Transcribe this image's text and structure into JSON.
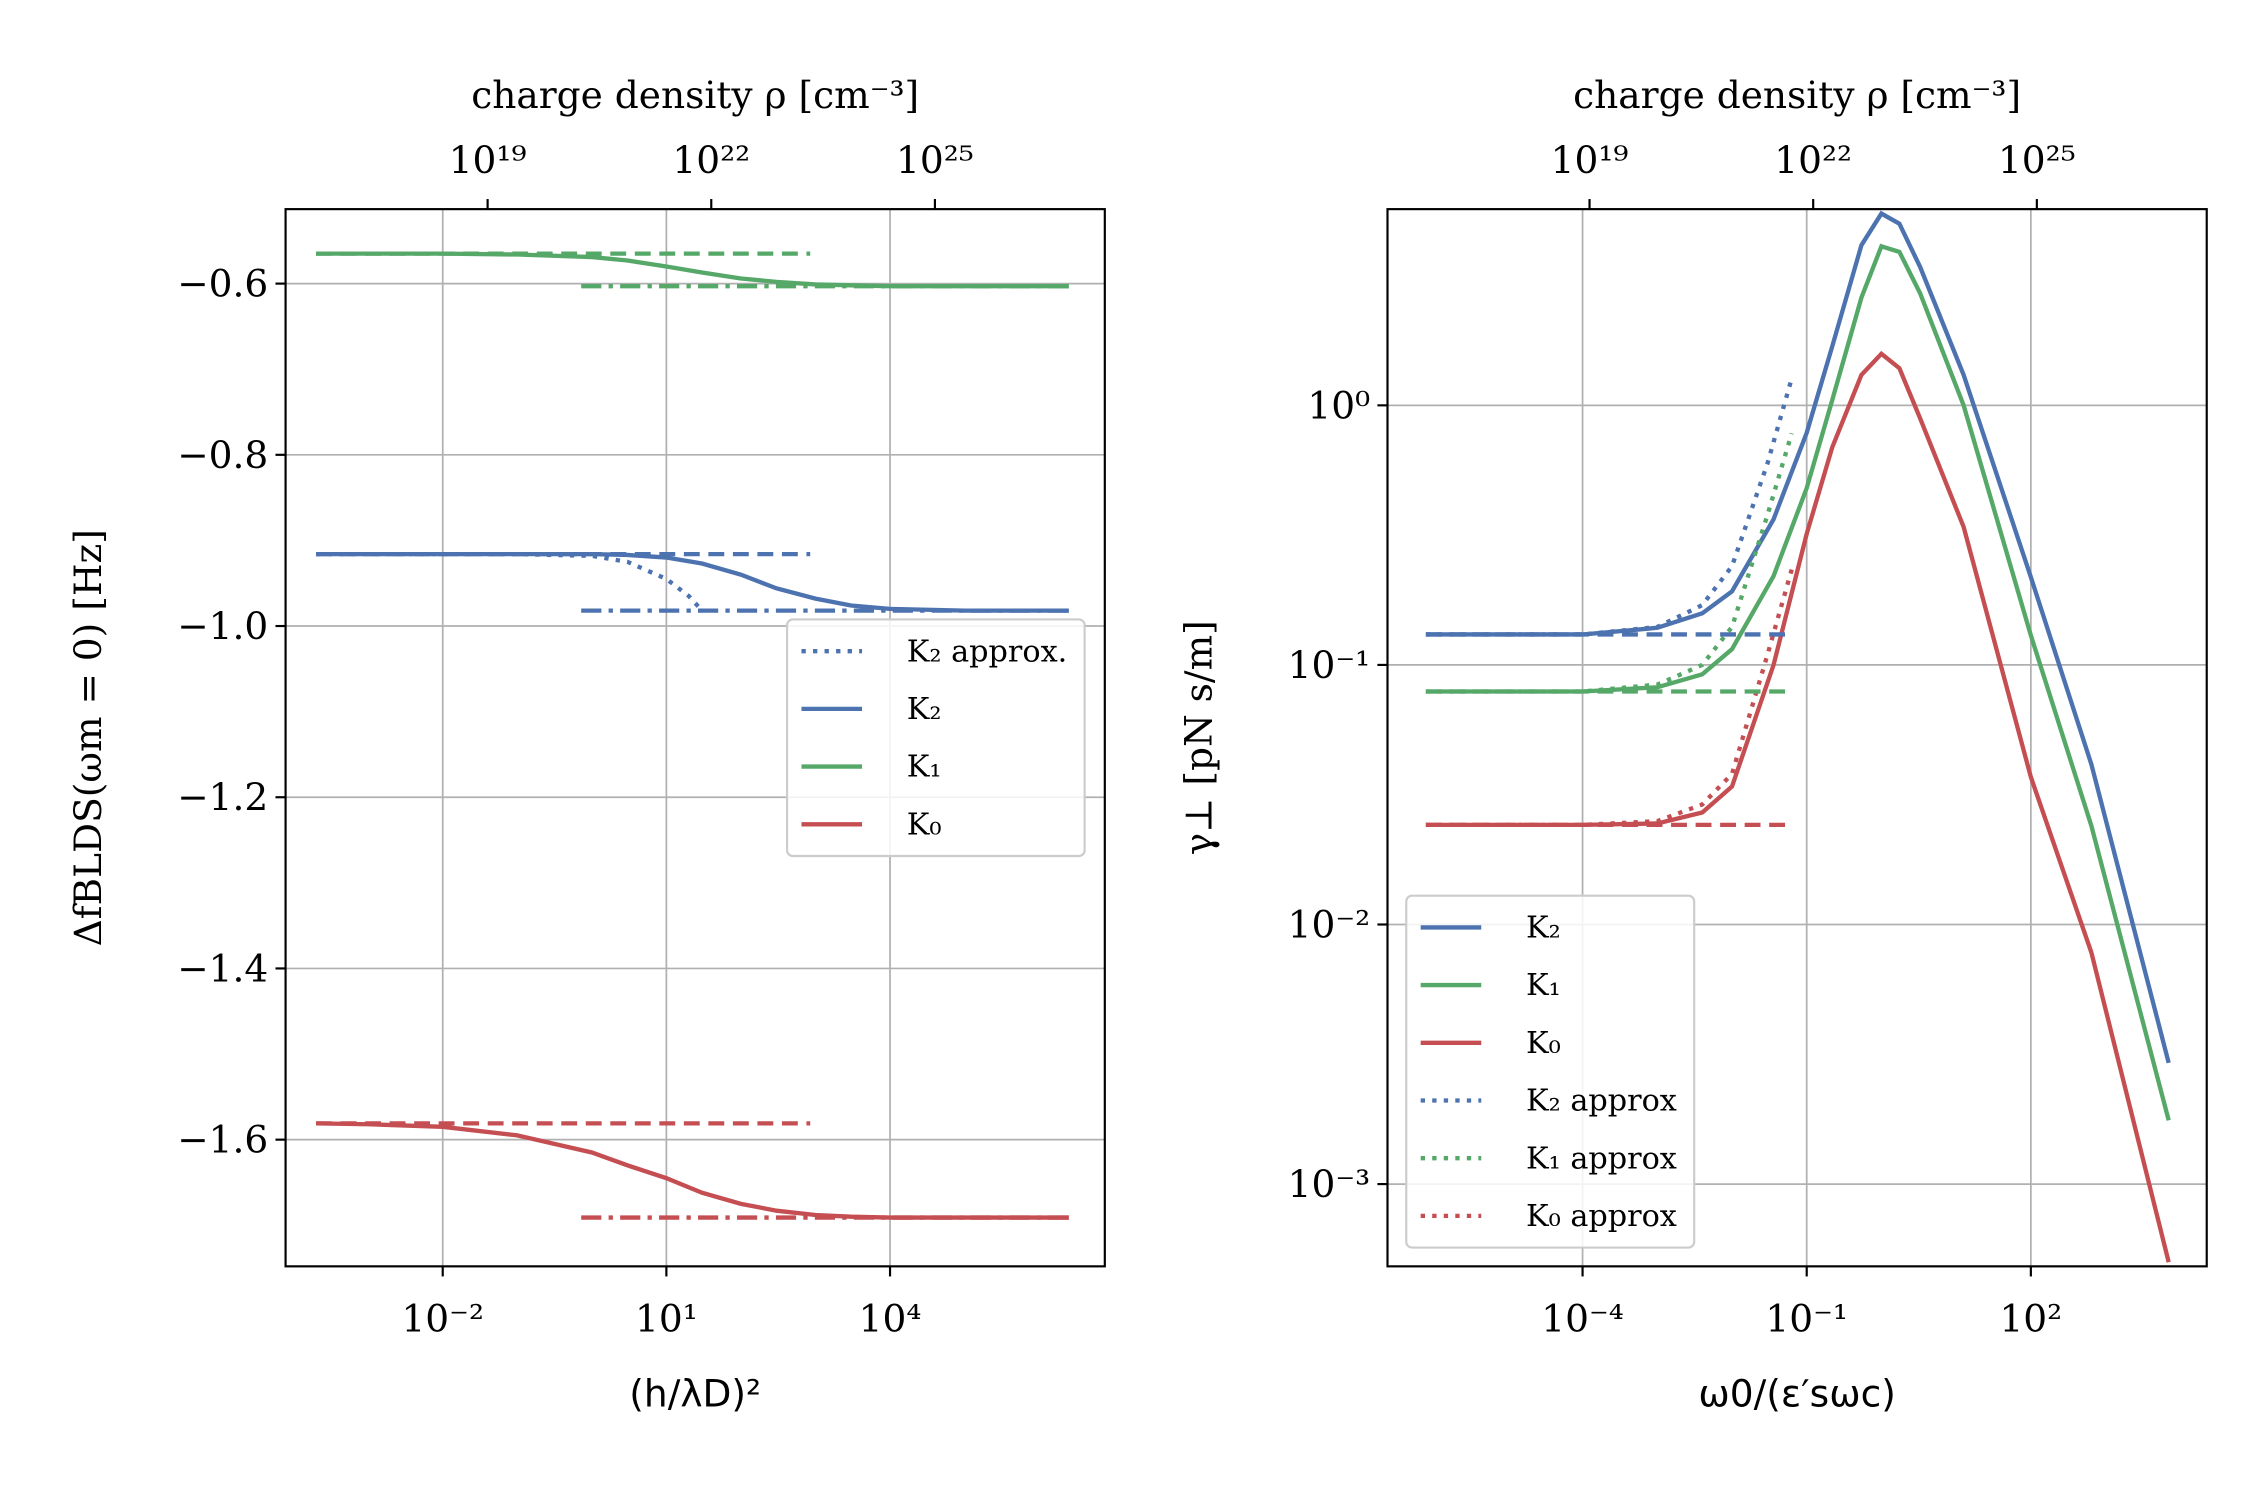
{
  "chart_data": [
    {
      "type": "line",
      "xscale": "log",
      "yscale": "linear",
      "grid": true,
      "legend": "center right",
      "x2label": "charge density ρ [cm⁻³]",
      "xlabel": "(h/λD)²",
      "ylabel": "ΔfBLDS(ωm = 0) [Hz]",
      "xlim": [
        7.8e-05,
        7600000.0
      ],
      "ylim": [
        -1.748,
        -0.513
      ],
      "x2lim": [
        1.95e+16,
        1.9e+27
      ],
      "xticks": [
        {
          "value": 0.01,
          "label": "10⁻²"
        },
        {
          "value": 10,
          "label": "10¹"
        },
        {
          "value": 10000,
          "label": "10⁴"
        }
      ],
      "x2ticks": [
        {
          "value": 1e+19,
          "label": "10¹⁹"
        },
        {
          "value": 1e+22,
          "label": "10²²"
        },
        {
          "value": 1e+25,
          "label": "10²⁵"
        }
      ],
      "yticks": [
        {
          "value": -0.6,
          "label": "−0.6"
        },
        {
          "value": -0.8,
          "label": "−0.8"
        },
        {
          "value": -1.0,
          "label": "−1.0"
        },
        {
          "value": -1.2,
          "label": "−1.2"
        },
        {
          "value": -1.4,
          "label": "−1.4"
        },
        {
          "value": -1.6,
          "label": "−1.6"
        }
      ],
      "series": [
        {
          "name": "K₂ approx.",
          "color": "#4c72b0",
          "style": "dotted",
          "x": [
            0.0002,
            0.1,
            1,
            3,
            10,
            20,
            30
          ],
          "values": [
            -0.916,
            -0.916,
            -0.918,
            -0.925,
            -0.945,
            -0.965,
            -0.982
          ]
        },
        {
          "name": "K₂",
          "color": "#4c72b0",
          "style": "solid",
          "x": [
            0.0002,
            0.001,
            0.01,
            0.1,
            1,
            3,
            10,
            30,
            100,
            300,
            1000,
            3000,
            10000,
            100000,
            2500000
          ],
          "values": [
            -0.916,
            -0.916,
            -0.916,
            -0.916,
            -0.916,
            -0.917,
            -0.92,
            -0.927,
            -0.94,
            -0.956,
            -0.968,
            -0.976,
            -0.98,
            -0.982,
            -0.982
          ]
        },
        {
          "name": "K₁",
          "color": "#55a868",
          "style": "solid",
          "x": [
            0.0002,
            0.001,
            0.01,
            0.1,
            1,
            3,
            10,
            30,
            100,
            300,
            1000,
            3000,
            10000,
            100000,
            2500000
          ],
          "values": [
            -0.565,
            -0.565,
            -0.565,
            -0.566,
            -0.569,
            -0.573,
            -0.58,
            -0.587,
            -0.594,
            -0.598,
            -0.601,
            -0.602,
            -0.603,
            -0.603,
            -0.603
          ]
        },
        {
          "name": "K₀",
          "color": "#c44e52",
          "style": "solid",
          "x": [
            0.0002,
            0.001,
            0.01,
            0.1,
            1,
            3,
            10,
            30,
            100,
            300,
            1000,
            3000,
            10000,
            100000,
            2500000
          ],
          "values": [
            -1.581,
            -1.582,
            -1.585,
            -1.595,
            -1.615,
            -1.63,
            -1.645,
            -1.662,
            -1.675,
            -1.683,
            -1.688,
            -1.69,
            -1.691,
            -1.691,
            -1.691
          ]
        },
        {
          "color": "#55a868",
          "style": "dashed",
          "x": [
            0.0002,
            850
          ],
          "values": [
            -0.565,
            -0.565
          ]
        },
        {
          "color": "#55a868",
          "style": "dashdot",
          "x": [
            0.72,
            2500000
          ],
          "values": [
            -0.603,
            -0.603
          ]
        },
        {
          "color": "#4c72b0",
          "style": "dashed",
          "x": [
            0.0002,
            850
          ],
          "values": [
            -0.916,
            -0.916
          ]
        },
        {
          "color": "#4c72b0",
          "style": "dashdot",
          "x": [
            0.72,
            2500000
          ],
          "values": [
            -0.982,
            -0.982
          ]
        },
        {
          "color": "#c44e52",
          "style": "dashed",
          "x": [
            0.0002,
            850
          ],
          "values": [
            -1.581,
            -1.581
          ]
        },
        {
          "color": "#c44e52",
          "style": "dashdot",
          "x": [
            0.72,
            2500000
          ],
          "values": [
            -1.691,
            -1.691
          ]
        }
      ]
    },
    {
      "type": "line",
      "xscale": "log",
      "yscale": "log",
      "grid": true,
      "legend": "lower left",
      "x2label": "charge density ρ [cm⁻³]",
      "xlabel": "ω0/(ε′sωc)",
      "ylabel": "γ⊥ [pN s/m]",
      "xlim": [
        2.45e-07,
        22600
      ],
      "ylim": [
        0.000482,
        5.7
      ],
      "x2lim": [
        1.95e+16,
        1.9e+27
      ],
      "xticks": [
        {
          "value": 0.0001,
          "label": "10⁻⁴"
        },
        {
          "value": 0.1,
          "label": "10⁻¹"
        },
        {
          "value": 100,
          "label": "10²"
        }
      ],
      "x2ticks": [
        {
          "value": 1e+19,
          "label": "10¹⁹"
        },
        {
          "value": 1e+22,
          "label": "10²²"
        },
        {
          "value": 1e+25,
          "label": "10²⁵"
        }
      ],
      "yticks": [
        {
          "value": 1,
          "label": "10⁰"
        },
        {
          "value": 0.1,
          "label": "10⁻¹"
        },
        {
          "value": 0.01,
          "label": "10⁻²"
        },
        {
          "value": 0.001,
          "label": "10⁻³"
        }
      ],
      "series": [
        {
          "name": "K₂",
          "color": "#4c72b0",
          "style": "solid",
          "x": [
            8e-07,
            0.0001,
            0.001,
            0.004,
            0.01,
            0.036,
            0.1,
            0.22,
            0.54,
            1,
            1.74,
            3.3,
            12.6,
            100,
            646,
            7000
          ],
          "values": [
            0.131,
            0.131,
            0.139,
            0.158,
            0.192,
            0.364,
            0.784,
            1.69,
            4.14,
            5.48,
            5.01,
            3.41,
            1.31,
            0.218,
            0.0414,
            0.00293
          ]
        },
        {
          "name": "K₁",
          "color": "#55a868",
          "style": "solid",
          "x": [
            8e-07,
            0.0001,
            0.001,
            0.004,
            0.01,
            0.036,
            0.1,
            0.22,
            0.54,
            1,
            1.74,
            3.3,
            12.6,
            100,
            646,
            7000
          ],
          "values": [
            0.079,
            0.079,
            0.082,
            0.092,
            0.115,
            0.22,
            0.48,
            1.05,
            2.6,
            4.1,
            3.9,
            2.7,
            1.0,
            0.13,
            0.024,
            0.00176
          ]
        },
        {
          "name": "K₀",
          "color": "#c44e52",
          "style": "solid",
          "x": [
            8e-07,
            0.0001,
            0.001,
            0.004,
            0.01,
            0.036,
            0.1,
            0.22,
            0.54,
            1,
            1.74,
            3.3,
            12.6,
            100,
            646,
            7000
          ],
          "values": [
            0.0242,
            0.0242,
            0.0245,
            0.027,
            0.034,
            0.1,
            0.32,
            0.69,
            1.31,
            1.58,
            1.39,
            0.89,
            0.34,
            0.037,
            0.0078,
            0.0005
          ]
        },
        {
          "name": "K₂ approx",
          "color": "#4c72b0",
          "style": "dotted",
          "x": [
            8e-07,
            0.0001,
            0.001,
            0.004,
            0.01,
            0.03,
            0.063
          ],
          "values": [
            0.131,
            0.131,
            0.14,
            0.17,
            0.24,
            0.6,
            1.27
          ]
        },
        {
          "name": "K₁ approx",
          "color": "#55a868",
          "style": "dotted",
          "x": [
            8e-07,
            0.0001,
            0.001,
            0.004,
            0.01,
            0.03,
            0.063
          ],
          "values": [
            0.079,
            0.079,
            0.084,
            0.1,
            0.14,
            0.38,
            0.78
          ]
        },
        {
          "name": "K₀ approx",
          "color": "#c44e52",
          "style": "dotted",
          "x": [
            8e-07,
            0.0001,
            0.001,
            0.004,
            0.01,
            0.03,
            0.063
          ],
          "values": [
            0.0242,
            0.0242,
            0.025,
            0.029,
            0.038,
            0.11,
            0.233
          ]
        },
        {
          "color": "#4c72b0",
          "style": "dashed",
          "x": [
            8e-07,
            0.063
          ],
          "values": [
            0.131,
            0.131
          ]
        },
        {
          "color": "#55a868",
          "style": "dashed",
          "x": [
            8e-07,
            0.063
          ],
          "values": [
            0.079,
            0.079
          ]
        },
        {
          "color": "#c44e52",
          "style": "dashed",
          "x": [
            8e-07,
            0.063
          ],
          "values": [
            0.0242,
            0.0242
          ]
        }
      ]
    }
  ]
}
